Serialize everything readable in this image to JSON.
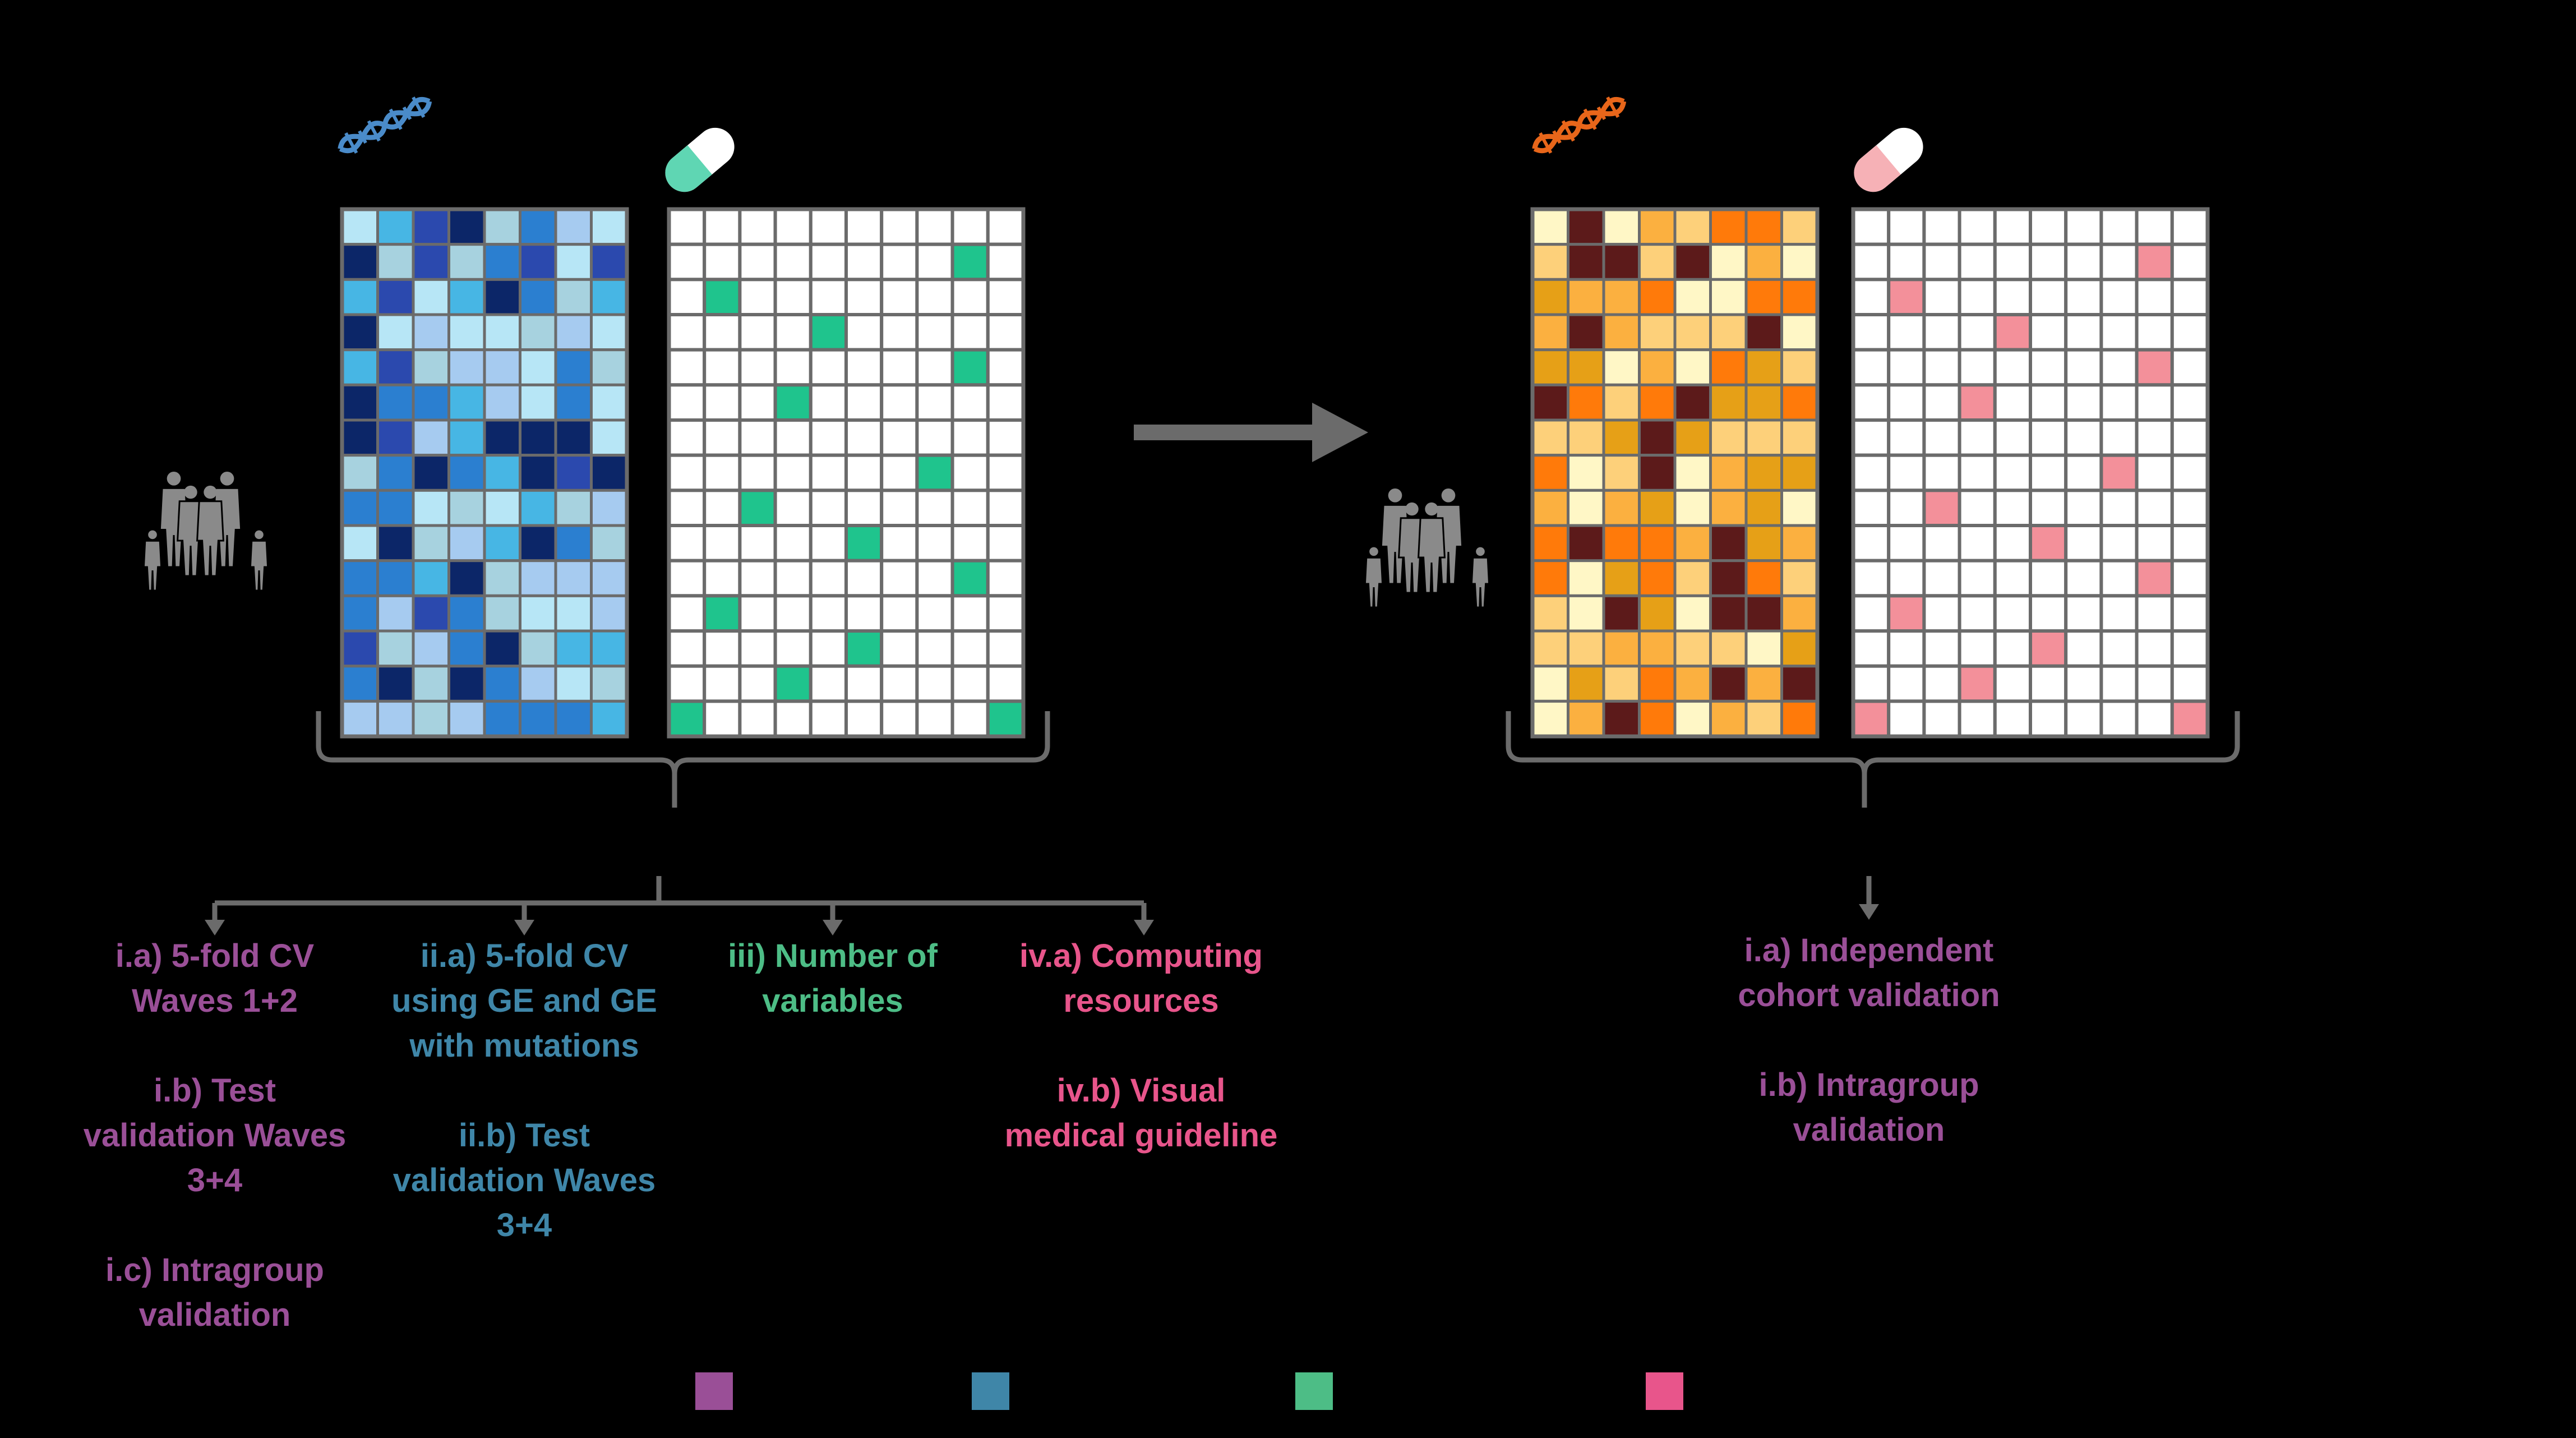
{
  "colors": {
    "background": "#000000",
    "purple": "#9a4f97",
    "blue": "#3f86a8",
    "green": "#4dbd86",
    "pink": "#e8558b",
    "connector": "#6b6b6b",
    "grid_line": "#6b6b6b",
    "mutation_green": "#1fc48d",
    "mutation_pink": "#f3909a",
    "icon_blue": "#4a8bc9",
    "icon_orange": "#e8661a",
    "pill_green": "#5fd6b3",
    "pill_pink": "#f6b1b6",
    "people_grey": "#8a8a8a"
  },
  "palettes": {
    "blue": [
      "#0c2668",
      "#2b49ae",
      "#2b7fd0",
      "#47b6e4",
      "#a6cbf0",
      "#b7e6f6",
      "#a7d2df"
    ],
    "orange": [
      "#5c1a1a",
      "#e6a017",
      "#ff7a0a",
      "#fdd07a",
      "#fff7c6",
      "#fbb040"
    ]
  },
  "left_panel": {
    "gene_matrix": {
      "rows": 15,
      "cols": 8
    },
    "mutation_matrix": {
      "rows": 15,
      "cols": 10,
      "marked_cells": [
        [
          1,
          8
        ],
        [
          2,
          1
        ],
        [
          3,
          4
        ],
        [
          4,
          8
        ],
        [
          5,
          3
        ],
        [
          7,
          7
        ],
        [
          8,
          2
        ],
        [
          9,
          5
        ],
        [
          10,
          8
        ],
        [
          11,
          1
        ],
        [
          12,
          5
        ],
        [
          13,
          3
        ],
        [
          14,
          0
        ],
        [
          14,
          9
        ]
      ]
    }
  },
  "right_panel": {
    "gene_matrix": {
      "rows": 15,
      "cols": 8
    },
    "mutation_matrix": {
      "rows": 15,
      "cols": 10,
      "marked_cells": [
        [
          1,
          8
        ],
        [
          2,
          1
        ],
        [
          3,
          4
        ],
        [
          4,
          8
        ],
        [
          5,
          3
        ],
        [
          7,
          7
        ],
        [
          8,
          2
        ],
        [
          9,
          5
        ],
        [
          10,
          8
        ],
        [
          11,
          1
        ],
        [
          12,
          5
        ],
        [
          13,
          3
        ],
        [
          14,
          0
        ],
        [
          14,
          9
        ]
      ]
    }
  },
  "labels": {
    "purple_1": "i.a) 5-fold CV\nWaves 1+2\n\ni.b) Test\nvalidation Waves\n3+4\n\ni.c) Intragroup\nvalidation",
    "blue_1": "ii.a) 5-fold CV\nusing GE and GE\nwith mutations\n\nii.b) Test\nvalidation Waves\n3+4",
    "green_1": "iii) Number of\nvariables",
    "pink_1": "iv.a) Computing\nresources\n\niv.b) Visual\nmedical guideline",
    "purple_2": "i.a) Independent\ncohort validation\n\ni.b) Intragroup\nvalidation"
  },
  "legend": [
    {
      "color": "#9a4f97",
      "label": ""
    },
    {
      "color": "#3f86a8",
      "label": ""
    },
    {
      "color": "#4dbd86",
      "label": ""
    },
    {
      "color": "#e8558b",
      "label": ""
    }
  ]
}
